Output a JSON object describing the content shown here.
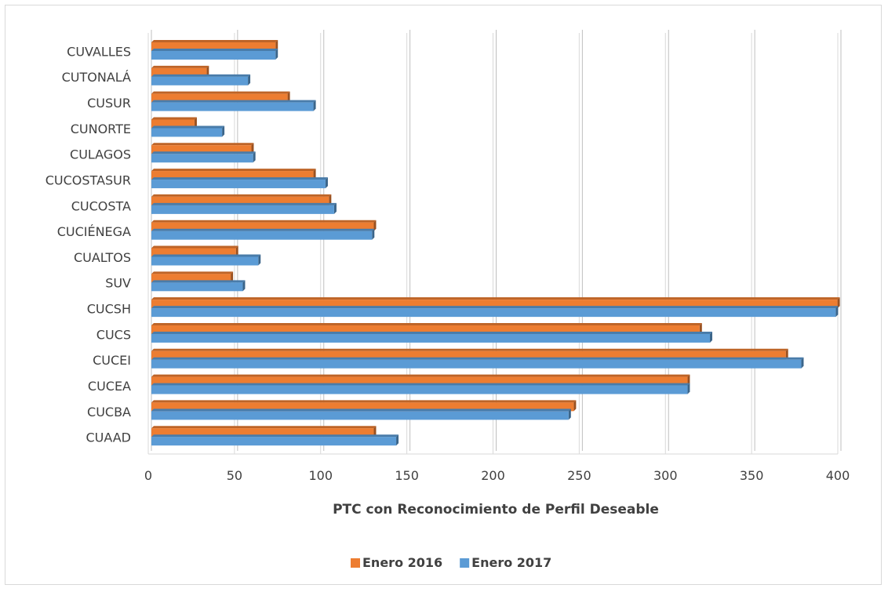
{
  "chart_data": {
    "type": "bar",
    "orientation": "horizontal",
    "categories": [
      "CUAAD",
      "CUCBA",
      "CUCEA",
      "CUCEI",
      "CUCS",
      "CUCSH",
      "SUV",
      "CUALTOS",
      "CUCIÉNEGA",
      "CUCOSTA",
      "CUCOSTASUR",
      "CULAGOS",
      "CUNORTE",
      "CUSUR",
      "CUTONALÁ",
      "CUVALLES"
    ],
    "series": [
      {
        "name": "Enero 2016",
        "color": "#ed7d31",
        "values": [
          129,
          245,
          311,
          368,
          318,
          398,
          46,
          49,
          129,
          103,
          94,
          58,
          25,
          79,
          32,
          72
        ]
      },
      {
        "name": "Enero 2017",
        "color": "#5b9bd5",
        "values": [
          142,
          242,
          311,
          377,
          324,
          397,
          53,
          62,
          128,
          106,
          101,
          59,
          41,
          94,
          56,
          72
        ]
      }
    ],
    "xlabel": "PTC con Reconocimiento de Perfil Deseable",
    "ylabel": "",
    "xlim": [
      0,
      400
    ],
    "xticks": [
      "0",
      "50",
      "100",
      "150",
      "200",
      "250",
      "300",
      "350",
      "400"
    ],
    "grid": "vertical",
    "legend_position": "bottom",
    "style": "3d-bar"
  }
}
